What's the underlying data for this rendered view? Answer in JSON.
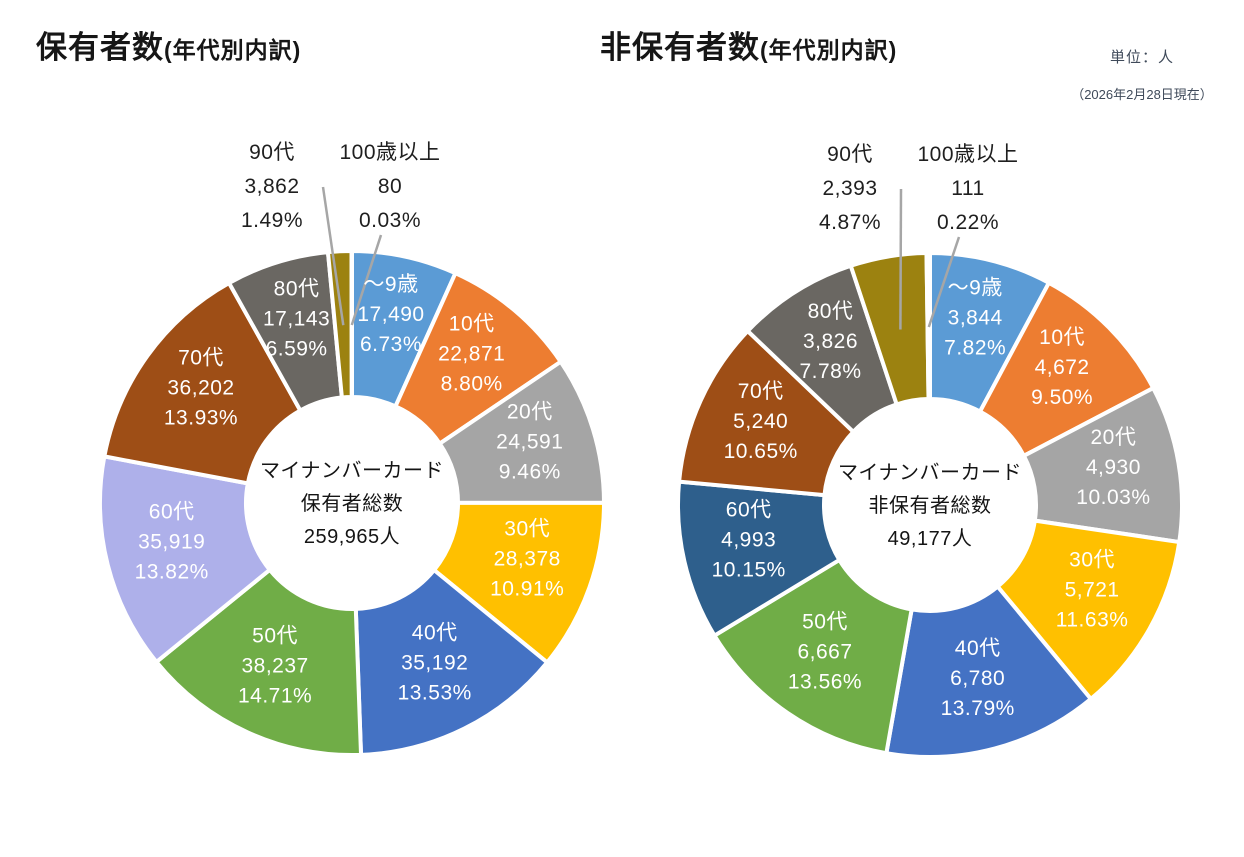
{
  "notes": {
    "unit": "単位：人",
    "date": "（2026年2月28日現在）"
  },
  "chart_data": [
    {
      "type": "pie",
      "subtype": "donut",
      "title_main": "保有者数",
      "title_sub": "(年代別内訳)",
      "center_lines": [
        "マイナンバーカード",
        "保有者総数",
        "259,965人"
      ],
      "total": "259,965人",
      "legend_position": "inside",
      "segments": [
        {
          "label": "～9歳",
          "value": "17,490",
          "percent": "6.73%",
          "pct": 6.73,
          "color": "#5B9BD5",
          "outside": false
        },
        {
          "label": "10代",
          "value": "22,871",
          "percent": "8.80%",
          "pct": 8.8,
          "color": "#ED7D31",
          "outside": false
        },
        {
          "label": "20代",
          "value": "24,591",
          "percent": "9.46%",
          "pct": 9.46,
          "color": "#A5A5A5",
          "outside": false
        },
        {
          "label": "30代",
          "value": "28,378",
          "percent": "10.91%",
          "pct": 10.91,
          "color": "#FFC000",
          "outside": false
        },
        {
          "label": "40代",
          "value": "35,192",
          "percent": "13.53%",
          "pct": 13.53,
          "color": "#4472C4",
          "outside": false
        },
        {
          "label": "50代",
          "value": "38,237",
          "percent": "14.71%",
          "pct": 14.71,
          "color": "#70AD47",
          "outside": false
        },
        {
          "label": "60代",
          "value": "35,919",
          "percent": "13.82%",
          "pct": 13.82,
          "color": "#AEB0EA",
          "outside": false
        },
        {
          "label": "70代",
          "value": "36,202",
          "percent": "13.93%",
          "pct": 13.93,
          "color": "#9E4E16",
          "outside": false
        },
        {
          "label": "80代",
          "value": "17,143",
          "percent": "6.59%",
          "pct": 6.59,
          "color": "#6A6762",
          "outside": false
        },
        {
          "label": "90代",
          "value": "3,862",
          "percent": "1.49%",
          "pct": 1.49,
          "color": "#9C8210",
          "outside": true
        },
        {
          "label": "100歳以上",
          "value": "80",
          "percent": "0.03%",
          "pct": 0.03,
          "color": "#7F6000",
          "outside": true
        }
      ]
    },
    {
      "type": "pie",
      "subtype": "donut",
      "title_main": "非保有者数",
      "title_sub": "(年代別内訳)",
      "center_lines": [
        "マイナンバーカード",
        "非保有者総数",
        "49,177人"
      ],
      "total": "49,177人",
      "legend_position": "inside",
      "segments": [
        {
          "label": "～9歳",
          "value": "3,844",
          "percent": "7.82%",
          "pct": 7.82,
          "color": "#5B9BD5",
          "outside": false
        },
        {
          "label": "10代",
          "value": "4,672",
          "percent": "9.50%",
          "pct": 9.5,
          "color": "#ED7D31",
          "outside": false
        },
        {
          "label": "20代",
          "value": "4,930",
          "percent": "10.03%",
          "pct": 10.03,
          "color": "#A5A5A5",
          "outside": false
        },
        {
          "label": "30代",
          "value": "5,721",
          "percent": "11.63%",
          "pct": 11.63,
          "color": "#FFC000",
          "outside": false
        },
        {
          "label": "40代",
          "value": "6,780",
          "percent": "13.79%",
          "pct": 13.79,
          "color": "#4472C4",
          "outside": false
        },
        {
          "label": "50代",
          "value": "6,667",
          "percent": "13.56%",
          "pct": 13.56,
          "color": "#70AD47",
          "outside": false
        },
        {
          "label": "60代",
          "value": "4,993",
          "percent": "10.15%",
          "pct": 10.15,
          "color": "#2E5F8C",
          "outside": false
        },
        {
          "label": "70代",
          "value": "5,240",
          "percent": "10.65%",
          "pct": 10.65,
          "color": "#9E4E16",
          "outside": false
        },
        {
          "label": "80代",
          "value": "3,826",
          "percent": "7.78%",
          "pct": 7.78,
          "color": "#6A6762",
          "outside": false
        },
        {
          "label": "90代",
          "value": "2,393",
          "percent": "4.87%",
          "pct": 4.87,
          "color": "#9C8210",
          "outside": true
        },
        {
          "label": "100歳以上",
          "value": "111",
          "percent": "0.22%",
          "pct": 0.22,
          "color": "#7F6000",
          "outside": true
        }
      ]
    }
  ]
}
